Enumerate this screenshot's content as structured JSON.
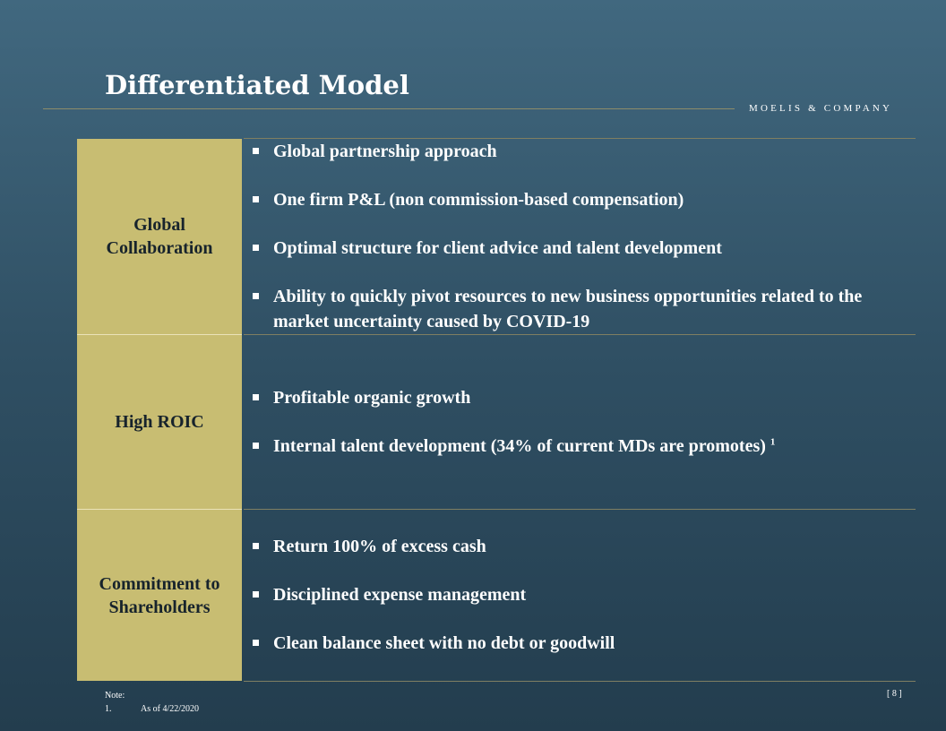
{
  "slide": {
    "title": "Differentiated Model",
    "brand": "MOELIS & COMPANY",
    "page_number": "[ 8 ]"
  },
  "rows": [
    {
      "label": "Global Collaboration",
      "bullets": [
        "Global partnership approach",
        "One firm P&L (non commission-based compensation)",
        "Optimal structure for client advice and talent development",
        "Ability to quickly pivot resources to new business opportunities related to the market uncertainty caused by COVID-19"
      ]
    },
    {
      "label": "High ROIC",
      "bullets": [
        "Profitable organic growth",
        "Internal talent development (34% of current MDs are promotes)"
      ],
      "footnote_ref": "1"
    },
    {
      "label": "Commitment to Shareholders",
      "bullets": [
        "Return 100% of excess cash",
        "Disciplined expense management",
        "Clean balance sheet with no debt or goodwill"
      ]
    }
  ],
  "notes": {
    "heading": "Note:",
    "items": [
      {
        "number": "1.",
        "text": "As of 4/22/2020"
      }
    ]
  },
  "colors": {
    "background_top": "#41687f",
    "background_bottom": "#233d4e",
    "label_fill": "#c8bd72",
    "rule": "#7f7f62"
  }
}
